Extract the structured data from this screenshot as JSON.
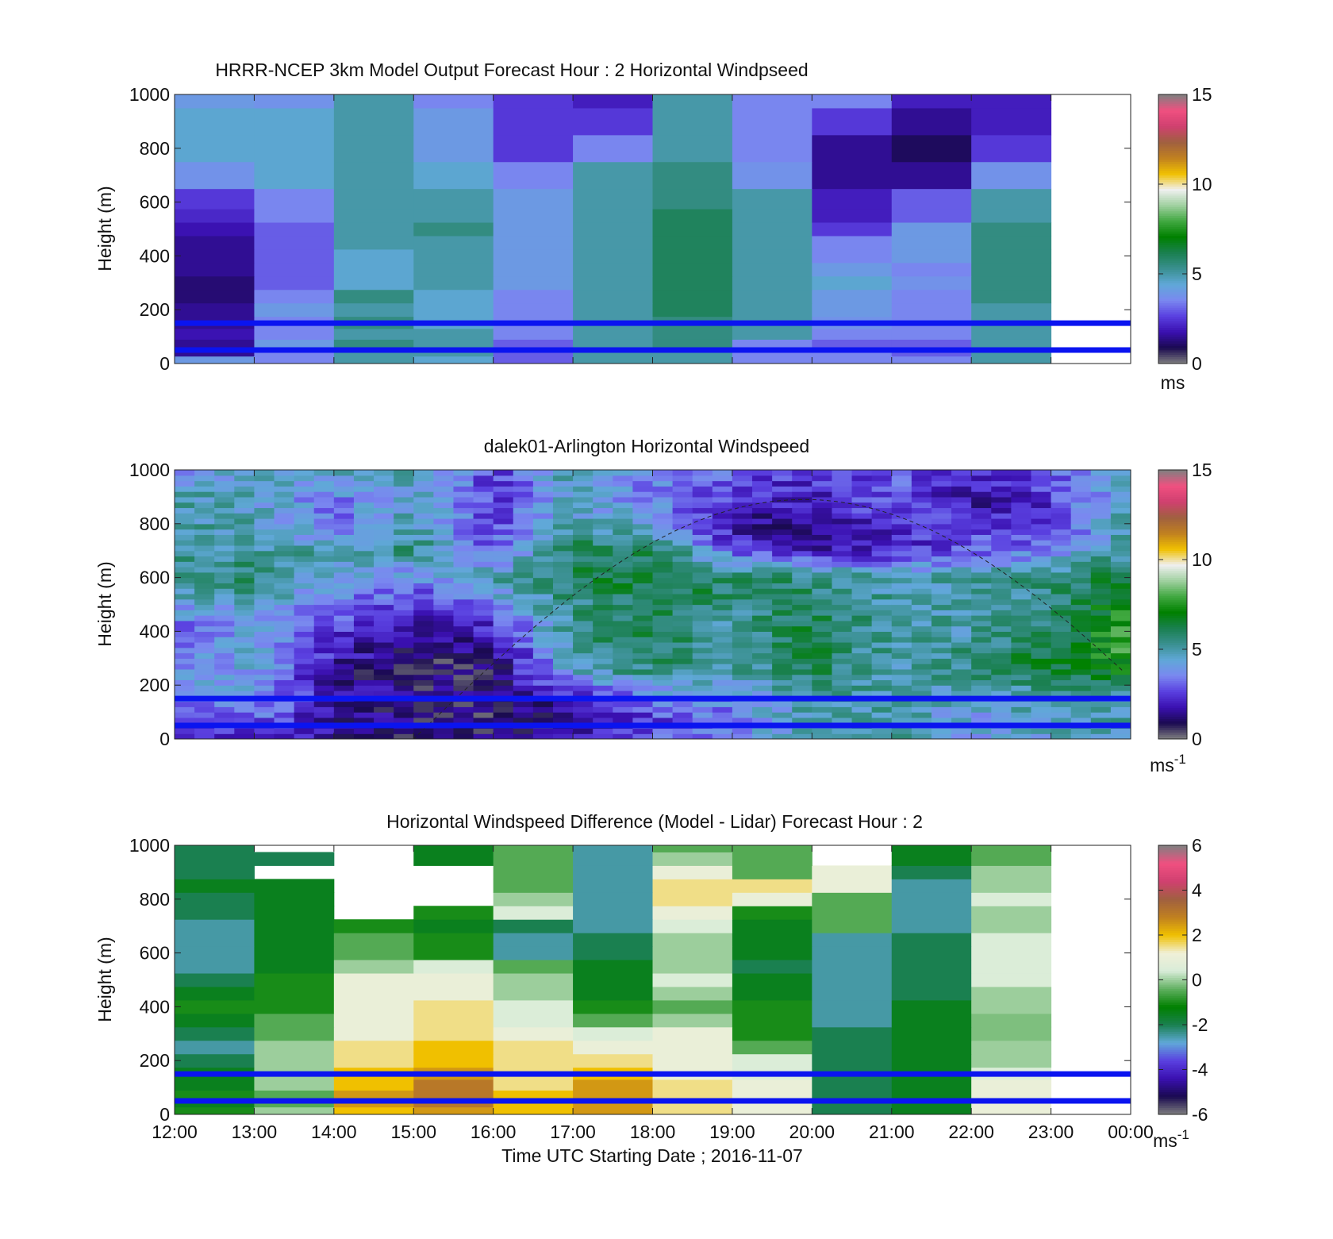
{
  "x_axis": {
    "ticks": [
      "12:00",
      "13:00",
      "14:00",
      "15:00",
      "16:00",
      "17:00",
      "18:00",
      "19:00",
      "20:00",
      "21:00",
      "22:00",
      "23:00",
      "00:00"
    ],
    "label": "Time UTC  Starting Date ; 2016-11-07"
  },
  "y_axis": {
    "label": "Height (m)",
    "ticks": [
      "0",
      "200",
      "400",
      "600",
      "800",
      "1000"
    ]
  },
  "reference_lines": {
    "heights_m": [
      50,
      150
    ],
    "color": "#0a14f0"
  },
  "colormaps": {
    "speed": [
      "#808080",
      "#1a0a50",
      "#3a10b0",
      "#5a40e0",
      "#7a88f0",
      "#60a8d8",
      "#3a9090",
      "#1a8050",
      "#008000",
      "#40a840",
      "#a0d0a0",
      "#f0f0f0",
      "#f0c000",
      "#c08020",
      "#a06040",
      "#d04070",
      "#f05080",
      "#808080"
    ],
    "difference": [
      "#808080",
      "#1a0a50",
      "#3a10b0",
      "#5a40e0",
      "#60a8d8",
      "#1a8050",
      "#008000",
      "#60b060",
      "#d8ecd8",
      "#f0f0d8",
      "#f0c000",
      "#c08020",
      "#a06040",
      "#d04070",
      "#f05080",
      "#808080"
    ]
  },
  "chart_data": [
    {
      "type": "heatmap",
      "title": "HRRR-NCEP 3km Model Output   Forecast Hour : 2 Horizontal Windpseed",
      "ylabel": "Height (m)",
      "xlabel": "",
      "ylim": [
        0,
        1000
      ],
      "xlim_hours": [
        12,
        24
      ],
      "colorbar": {
        "range": [
          0,
          15
        ],
        "ticks": [
          "0",
          "5",
          "10",
          "15"
        ],
        "unit": "ms"
      },
      "columns_hour": [
        12,
        13,
        14,
        15,
        16,
        17,
        18,
        19,
        20,
        21,
        22
      ],
      "column_width_h": 1,
      "heights_m": [
        15,
        40,
        70,
        110,
        150,
        200,
        250,
        300,
        350,
        400,
        450,
        500,
        550,
        600,
        700,
        800,
        900,
        1000
      ],
      "values": [
        [
          4.0,
          3.5,
          5.0,
          4.5,
          3.0,
          5.0,
          5.0,
          3.5,
          3.5,
          3.5,
          5.0
        ],
        [
          1.5,
          3.5,
          5.0,
          5.0,
          3.0,
          5.0,
          5.0,
          3.5,
          3.5,
          3.0,
          5.0
        ],
        [
          1.5,
          4.0,
          5.5,
          5.0,
          3.0,
          5.0,
          5.5,
          3.5,
          3.0,
          3.0,
          5.0
        ],
        [
          1.8,
          3.5,
          5.0,
          5.0,
          3.5,
          5.0,
          5.5,
          5.0,
          3.5,
          3.5,
          5.0
        ],
        [
          1.5,
          3.5,
          5.5,
          4.5,
          3.5,
          5.0,
          5.5,
          5.0,
          3.8,
          3.5,
          5.0
        ],
        [
          1.5,
          4.0,
          5.0,
          4.5,
          3.5,
          5.0,
          6.0,
          5.0,
          4.0,
          3.5,
          5.0
        ],
        [
          1.2,
          3.5,
          5.5,
          4.5,
          3.5,
          5.0,
          6.0,
          5.0,
          4.0,
          3.5,
          5.5
        ],
        [
          1.2,
          3.0,
          4.5,
          5.0,
          4.0,
          5.0,
          6.0,
          5.0,
          4.5,
          3.8,
          5.5
        ],
        [
          1.5,
          3.0,
          4.5,
          5.0,
          4.0,
          5.0,
          6.0,
          5.0,
          4.0,
          3.5,
          5.5
        ],
        [
          1.5,
          3.0,
          4.5,
          5.0,
          4.0,
          5.0,
          6.0,
          5.0,
          3.5,
          4.0,
          5.5
        ],
        [
          1.5,
          3.0,
          5.0,
          5.0,
          4.0,
          5.0,
          6.0,
          5.0,
          3.5,
          4.0,
          5.5
        ],
        [
          1.8,
          3.0,
          5.0,
          5.5,
          4.0,
          5.0,
          6.0,
          5.0,
          2.5,
          4.0,
          5.5
        ],
        [
          2.2,
          3.5,
          5.0,
          5.0,
          4.0,
          5.0,
          6.0,
          5.0,
          2.0,
          3.0,
          5.0
        ],
        [
          2.5,
          3.5,
          5.0,
          5.0,
          4.0,
          5.0,
          5.5,
          5.0,
          2.0,
          3.0,
          5.0
        ],
        [
          3.8,
          4.5,
          5.0,
          4.5,
          3.5,
          5.0,
          5.5,
          3.8,
          1.5,
          1.5,
          3.8
        ],
        [
          4.5,
          4.5,
          5.0,
          4.0,
          2.5,
          3.5,
          5.0,
          3.5,
          1.5,
          1.0,
          2.5
        ],
        [
          4.5,
          4.5,
          5.0,
          4.0,
          2.5,
          2.5,
          5.0,
          3.5,
          2.5,
          1.5,
          2.0
        ],
        [
          4.0,
          3.8,
          5.0,
          3.5,
          2.5,
          2.0,
          5.0,
          3.5,
          3.5,
          2.0,
          2.0
        ]
      ]
    },
    {
      "type": "heatmap",
      "title": "dalek01-Arlington  Horizontal Windspeed",
      "ylabel": "Height (m)",
      "xlabel": "",
      "ylim": [
        0,
        1000
      ],
      "xlim_hours": [
        12,
        24
      ],
      "colorbar": {
        "range": [
          0,
          15
        ],
        "ticks": [
          "0",
          "5",
          "10",
          "15"
        ],
        "unit": "ms",
        "unit_exponent": "-1"
      },
      "extra_curve": "sun elevation (dashed)",
      "anchor_hours": [
        12,
        13,
        14,
        15,
        16,
        17,
        18,
        19,
        20,
        21,
        22,
        23,
        23.85
      ],
      "anchor_heights_m": [
        20,
        60,
        150,
        250,
        300,
        400,
        500,
        600,
        700,
        800,
        900,
        1000
      ],
      "anchor_values": [
        [
          2.0,
          2.5,
          1.5,
          1.0,
          1.0,
          1.5,
          3.0,
          3.5,
          4.5,
          5.0,
          4.0,
          4.5,
          5.0
        ],
        [
          3.0,
          3.0,
          1.5,
          1.0,
          0.8,
          1.2,
          2.5,
          3.5,
          5.0,
          5.0,
          4.0,
          4.5,
          5.0
        ],
        [
          3.5,
          4.0,
          2.0,
          1.2,
          1.0,
          2.0,
          3.5,
          3.5,
          5.0,
          5.0,
          4.5,
          5.0,
          5.0
        ],
        [
          4.0,
          4.0,
          1.5,
          1.0,
          1.0,
          4.5,
          5.5,
          5.0,
          6.0,
          5.0,
          5.5,
          6.0,
          7.0
        ],
        [
          3.5,
          4.5,
          2.0,
          0.8,
          1.2,
          5.0,
          6.0,
          5.0,
          6.0,
          5.0,
          5.5,
          6.5,
          7.5
        ],
        [
          3.0,
          4.0,
          2.5,
          1.5,
          2.0,
          5.5,
          6.0,
          5.0,
          6.5,
          5.0,
          5.0,
          6.0,
          7.5
        ],
        [
          4.0,
          4.5,
          3.5,
          2.5,
          3.5,
          5.5,
          6.0,
          5.5,
          6.0,
          5.0,
          5.0,
          5.5,
          7.0
        ],
        [
          5.5,
          6.0,
          4.0,
          3.5,
          5.0,
          6.0,
          6.5,
          6.0,
          5.5,
          5.0,
          5.0,
          5.5,
          6.5
        ],
        [
          5.0,
          5.0,
          5.0,
          5.5,
          3.0,
          6.0,
          6.0,
          3.0,
          2.0,
          2.0,
          3.0,
          3.5,
          5.0
        ],
        [
          5.0,
          5.0,
          3.0,
          5.0,
          2.5,
          5.0,
          4.0,
          1.5,
          1.5,
          2.5,
          2.5,
          2.0,
          5.0
        ],
        [
          5.0,
          4.5,
          3.5,
          4.5,
          2.5,
          4.5,
          3.5,
          2.5,
          2.0,
          3.0,
          1.5,
          2.5,
          4.5
        ],
        [
          3.0,
          5.0,
          4.5,
          5.0,
          2.5,
          5.0,
          3.5,
          3.0,
          2.5,
          3.0,
          2.5,
          3.0,
          4.0
        ]
      ]
    },
    {
      "type": "heatmap",
      "title": "Horizontal Windspeed Difference (Model - Lidar) Forecast Hour : 2",
      "ylabel": "Height (m)",
      "xlabel": "Time UTC  Starting Date ; 2016-11-07",
      "ylim": [
        0,
        1000
      ],
      "xlim_hours": [
        12,
        24
      ],
      "colorbar": {
        "range": [
          -6,
          6
        ],
        "ticks": [
          "-6",
          "-4",
          "-2",
          "0",
          "2",
          "4",
          "6"
        ],
        "unit": "ms",
        "unit_exponent": "-1"
      },
      "columns_hour": [
        12,
        13,
        14,
        15,
        16,
        17,
        18,
        19,
        20,
        21,
        22
      ],
      "column_width_h": 1,
      "heights_m": [
        15,
        40,
        70,
        110,
        150,
        200,
        250,
        300,
        350,
        400,
        450,
        500,
        550,
        600,
        650,
        700,
        750,
        800,
        850,
        900,
        950,
        1000
      ],
      "values": [
        [
          -1.0,
          0.0,
          2.0,
          2.5,
          2.0,
          2.5,
          1.5,
          1.0,
          -2.0,
          -1.5,
          1.0
        ],
        [
          -1.5,
          -0.5,
          2.5,
          3.0,
          2.0,
          2.5,
          1.5,
          1.0,
          -2.0,
          -1.5,
          1.0
        ],
        [
          -1.0,
          -0.5,
          2.5,
          3.0,
          2.0,
          2.5,
          1.5,
          1.0,
          -2.0,
          -1.5,
          1.0
        ],
        [
          -1.5,
          0.0,
          2.0,
          3.0,
          1.5,
          2.5,
          1.5,
          1.0,
          -2.0,
          -1.5,
          1.0
        ],
        [
          -1.5,
          0.0,
          2.0,
          2.5,
          1.5,
          2.0,
          1.0,
          0.5,
          -2.0,
          -1.5,
          0.5
        ],
        [
          -2.0,
          0.0,
          1.5,
          2.0,
          1.5,
          1.5,
          1.0,
          0.5,
          -2.0,
          -1.5,
          0.0
        ],
        [
          -2.5,
          0.0,
          1.5,
          2.0,
          1.5,
          1.0,
          1.0,
          -0.5,
          -2.0,
          -1.5,
          0.0
        ],
        [
          -2.0,
          -0.5,
          1.0,
          1.5,
          1.0,
          0.5,
          1.0,
          -1.0,
          -2.0,
          -1.5,
          -0.2
        ],
        [
          -1.5,
          -0.5,
          1.0,
          1.5,
          0.5,
          -0.5,
          0.0,
          -1.0,
          -2.5,
          -1.5,
          -0.2
        ],
        [
          -1.0,
          -1.0,
          1.0,
          1.5,
          0.5,
          -1.0,
          -0.5,
          -1.0,
          -2.5,
          -1.5,
          0.0
        ],
        [
          -1.5,
          -1.0,
          1.0,
          1.0,
          0.0,
          -1.5,
          0.0,
          -1.5,
          -2.5,
          -2.0,
          0.0
        ],
        [
          -2.0,
          -1.0,
          1.0,
          1.0,
          0.0,
          -1.5,
          0.5,
          -1.5,
          -2.5,
          -2.0,
          0.5
        ],
        [
          -2.5,
          -1.5,
          0.0,
          0.5,
          -0.5,
          -1.5,
          0.0,
          -2.0,
          -2.5,
          -2.0,
          0.5
        ],
        [
          -2.5,
          -1.5,
          -0.5,
          -1.0,
          -2.5,
          -2.0,
          0.0,
          -1.5,
          -2.5,
          -2.0,
          0.5
        ],
        [
          -2.5,
          -1.5,
          -0.5,
          -1.0,
          -2.5,
          -2.0,
          0.0,
          -1.5,
          -2.5,
          -2.0,
          0.5
        ],
        [
          -2.5,
          -1.5,
          -1.0,
          -1.5,
          -2.0,
          -2.5,
          0.5,
          -1.5,
          -0.5,
          -2.5,
          0.0
        ],
        [
          -2.0,
          -1.5,
          null,
          -1.0,
          0.5,
          -2.5,
          1.0,
          -1.0,
          -0.5,
          -2.5,
          0.0
        ],
        [
          -2.0,
          -1.5,
          null,
          null,
          0.0,
          -2.5,
          1.5,
          1.0,
          -0.5,
          -2.5,
          0.5
        ],
        [
          -1.5,
          -1.5,
          null,
          null,
          -0.5,
          -2.5,
          1.5,
          1.5,
          1.0,
          -2.5,
          0.0
        ],
        [
          -2.0,
          null,
          null,
          null,
          -0.5,
          -2.5,
          1.0,
          -0.5,
          1.0,
          -2.0,
          0.0
        ],
        [
          -2.0,
          -2.0,
          null,
          -1.5,
          -0.5,
          -2.5,
          0.0,
          -0.5,
          null,
          -1.5,
          -0.5
        ],
        [
          -2.0,
          null,
          null,
          -1.5,
          -0.5,
          -2.5,
          -0.5,
          -0.5,
          null,
          -1.5,
          -0.5
        ]
      ]
    }
  ]
}
